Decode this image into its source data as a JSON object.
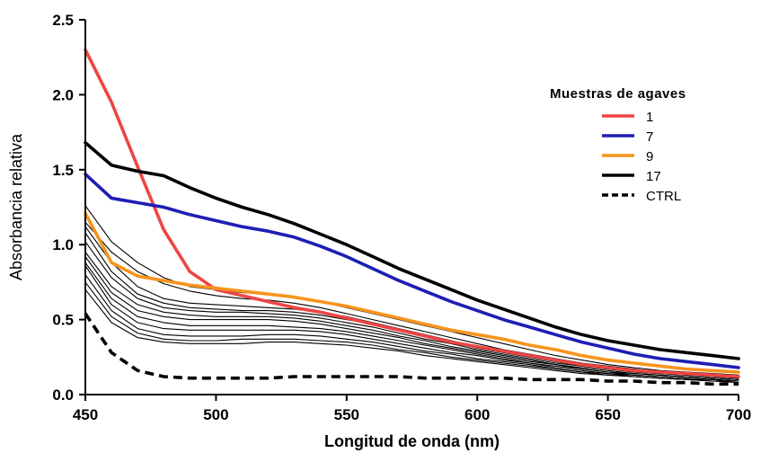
{
  "chart_data": {
    "type": "line",
    "title": "",
    "xlabel": "Longitud de onda (nm)",
    "ylabel": "Absorbancia relativa",
    "xlim": [
      450,
      700
    ],
    "ylim": [
      0,
      2.5
    ],
    "x_ticks": [
      "450",
      "500",
      "550",
      "600",
      "650",
      "700"
    ],
    "y_ticks": [
      "0.0",
      "0.5",
      "1.0",
      "1.5",
      "2.0",
      "2.5"
    ],
    "grid": false,
    "legend": {
      "title": "Muestras de agaves",
      "placement": "right",
      "entries": [
        {
          "label": "1",
          "color": "#ef4444",
          "style": "solid"
        },
        {
          "label": "7",
          "color": "#1e1eb4",
          "style": "solid"
        },
        {
          "label": "9",
          "color": "#f7941d",
          "style": "solid"
        },
        {
          "label": "17",
          "color": "#000000",
          "style": "solid"
        },
        {
          "label": "CTRL",
          "color": "#000000",
          "style": "dashed"
        }
      ]
    },
    "x": [
      450,
      460,
      470,
      480,
      490,
      500,
      510,
      520,
      530,
      540,
      550,
      560,
      570,
      580,
      590,
      600,
      610,
      620,
      630,
      640,
      650,
      660,
      670,
      680,
      690,
      700
    ],
    "series": [
      {
        "name": "1",
        "color": "#ef4444",
        "style": "solid",
        "width": "thick",
        "values": [
          2.3,
          1.95,
          1.52,
          1.1,
          0.82,
          0.7,
          0.66,
          0.62,
          0.58,
          0.55,
          0.51,
          0.47,
          0.43,
          0.39,
          0.35,
          0.32,
          0.29,
          0.26,
          0.23,
          0.2,
          0.18,
          0.16,
          0.15,
          0.14,
          0.13,
          0.12
        ]
      },
      {
        "name": "7",
        "color": "#1e1eb4",
        "style": "solid",
        "width": "thick",
        "values": [
          1.47,
          1.31,
          1.28,
          1.25,
          1.2,
          1.16,
          1.12,
          1.09,
          1.05,
          0.99,
          0.92,
          0.84,
          0.76,
          0.69,
          0.62,
          0.56,
          0.5,
          0.45,
          0.4,
          0.35,
          0.31,
          0.27,
          0.24,
          0.22,
          0.2,
          0.18
        ]
      },
      {
        "name": "9",
        "color": "#f7941d",
        "style": "solid",
        "width": "thick",
        "values": [
          1.21,
          0.88,
          0.79,
          0.76,
          0.73,
          0.71,
          0.69,
          0.67,
          0.65,
          0.62,
          0.59,
          0.55,
          0.51,
          0.47,
          0.43,
          0.4,
          0.37,
          0.33,
          0.3,
          0.26,
          0.23,
          0.21,
          0.19,
          0.17,
          0.16,
          0.15
        ]
      },
      {
        "name": "17",
        "color": "#000000",
        "style": "solid",
        "width": "thick",
        "values": [
          1.68,
          1.53,
          1.49,
          1.46,
          1.38,
          1.31,
          1.25,
          1.2,
          1.14,
          1.07,
          1.0,
          0.92,
          0.84,
          0.77,
          0.7,
          0.63,
          0.57,
          0.51,
          0.45,
          0.4,
          0.36,
          0.33,
          0.3,
          0.28,
          0.26,
          0.24
        ]
      },
      {
        "name": "CTRL",
        "color": "#000000",
        "style": "dashed",
        "width": "thick",
        "values": [
          0.54,
          0.28,
          0.16,
          0.12,
          0.11,
          0.11,
          0.11,
          0.11,
          0.12,
          0.12,
          0.12,
          0.12,
          0.12,
          0.11,
          0.11,
          0.11,
          0.11,
          0.1,
          0.1,
          0.1,
          0.09,
          0.09,
          0.08,
          0.08,
          0.07,
          0.07
        ]
      },
      {
        "name": "",
        "color": "#000000",
        "style": "solid",
        "width": "thin",
        "values": [
          1.26,
          1.02,
          0.88,
          0.78,
          0.72,
          0.7,
          0.68,
          0.67,
          0.65,
          0.62,
          0.58,
          0.54,
          0.5,
          0.46,
          0.42,
          0.38,
          0.34,
          0.3,
          0.26,
          0.23,
          0.2,
          0.18,
          0.16,
          0.15,
          0.14,
          0.13
        ]
      },
      {
        "name": "",
        "color": "#000000",
        "style": "solid",
        "width": "thin",
        "values": [
          1.15,
          0.95,
          0.82,
          0.74,
          0.69,
          0.66,
          0.64,
          0.63,
          0.61,
          0.58,
          0.54,
          0.5,
          0.46,
          0.42,
          0.38,
          0.34,
          0.3,
          0.27,
          0.24,
          0.21,
          0.19,
          0.17,
          0.15,
          0.14,
          0.13,
          0.12
        ]
      },
      {
        "name": "",
        "color": "#000000",
        "style": "solid",
        "width": "thin",
        "values": [
          1.12,
          0.88,
          0.72,
          0.64,
          0.61,
          0.6,
          0.59,
          0.58,
          0.57,
          0.55,
          0.52,
          0.48,
          0.44,
          0.4,
          0.36,
          0.32,
          0.29,
          0.26,
          0.23,
          0.2,
          0.18,
          0.16,
          0.15,
          0.13,
          0.12,
          0.11
        ]
      },
      {
        "name": "",
        "color": "#000000",
        "style": "solid",
        "width": "thin",
        "values": [
          1.08,
          0.82,
          0.67,
          0.61,
          0.58,
          0.57,
          0.56,
          0.56,
          0.55,
          0.53,
          0.5,
          0.47,
          0.43,
          0.39,
          0.35,
          0.31,
          0.28,
          0.25,
          0.22,
          0.19,
          0.17,
          0.15,
          0.14,
          0.13,
          0.12,
          0.11
        ]
      },
      {
        "name": "",
        "color": "#000000",
        "style": "solid",
        "width": "thin",
        "values": [
          1.02,
          0.78,
          0.64,
          0.58,
          0.56,
          0.55,
          0.55,
          0.54,
          0.53,
          0.51,
          0.48,
          0.45,
          0.41,
          0.37,
          0.34,
          0.3,
          0.27,
          0.24,
          0.21,
          0.19,
          0.17,
          0.15,
          0.14,
          0.13,
          0.12,
          0.11
        ]
      },
      {
        "name": "",
        "color": "#000000",
        "style": "solid",
        "width": "thin",
        "values": [
          0.95,
          0.72,
          0.6,
          0.55,
          0.53,
          0.52,
          0.52,
          0.52,
          0.51,
          0.49,
          0.46,
          0.43,
          0.39,
          0.36,
          0.32,
          0.29,
          0.26,
          0.23,
          0.2,
          0.18,
          0.16,
          0.14,
          0.13,
          0.12,
          0.11,
          0.1
        ]
      },
      {
        "name": "",
        "color": "#000000",
        "style": "solid",
        "width": "thin",
        "values": [
          0.92,
          0.68,
          0.56,
          0.52,
          0.5,
          0.5,
          0.5,
          0.5,
          0.49,
          0.47,
          0.44,
          0.41,
          0.38,
          0.34,
          0.31,
          0.28,
          0.25,
          0.22,
          0.2,
          0.17,
          0.15,
          0.14,
          0.13,
          0.12,
          0.11,
          0.1
        ]
      },
      {
        "name": "",
        "color": "#000000",
        "style": "solid",
        "width": "thin",
        "values": [
          0.88,
          0.64,
          0.52,
          0.48,
          0.46,
          0.46,
          0.46,
          0.46,
          0.45,
          0.44,
          0.42,
          0.39,
          0.36,
          0.33,
          0.3,
          0.27,
          0.24,
          0.21,
          0.19,
          0.17,
          0.15,
          0.13,
          0.12,
          0.11,
          0.1,
          0.09
        ]
      },
      {
        "name": "",
        "color": "#000000",
        "style": "solid",
        "width": "thin",
        "values": [
          0.86,
          0.6,
          0.48,
          0.44,
          0.43,
          0.43,
          0.43,
          0.43,
          0.43,
          0.42,
          0.4,
          0.37,
          0.34,
          0.31,
          0.28,
          0.26,
          0.23,
          0.21,
          0.18,
          0.16,
          0.14,
          0.13,
          0.12,
          0.11,
          0.1,
          0.09
        ]
      },
      {
        "name": "",
        "color": "#000000",
        "style": "solid",
        "width": "thin",
        "values": [
          0.8,
          0.56,
          0.44,
          0.4,
          0.39,
          0.39,
          0.39,
          0.4,
          0.4,
          0.39,
          0.37,
          0.35,
          0.32,
          0.29,
          0.27,
          0.24,
          0.22,
          0.2,
          0.17,
          0.15,
          0.14,
          0.12,
          0.11,
          0.1,
          0.1,
          0.09
        ]
      },
      {
        "name": "",
        "color": "#000000",
        "style": "solid",
        "width": "thin",
        "values": [
          0.75,
          0.52,
          0.41,
          0.37,
          0.36,
          0.36,
          0.37,
          0.37,
          0.37,
          0.36,
          0.35,
          0.33,
          0.3,
          0.28,
          0.25,
          0.23,
          0.21,
          0.19,
          0.17,
          0.15,
          0.13,
          0.12,
          0.11,
          0.1,
          0.09,
          0.09
        ]
      },
      {
        "name": "",
        "color": "#000000",
        "style": "solid",
        "width": "thin",
        "values": [
          0.7,
          0.48,
          0.38,
          0.35,
          0.34,
          0.34,
          0.34,
          0.35,
          0.35,
          0.34,
          0.33,
          0.31,
          0.29,
          0.26,
          0.24,
          0.22,
          0.2,
          0.18,
          0.16,
          0.14,
          0.13,
          0.12,
          0.11,
          0.1,
          0.09,
          0.08
        ]
      }
    ]
  }
}
